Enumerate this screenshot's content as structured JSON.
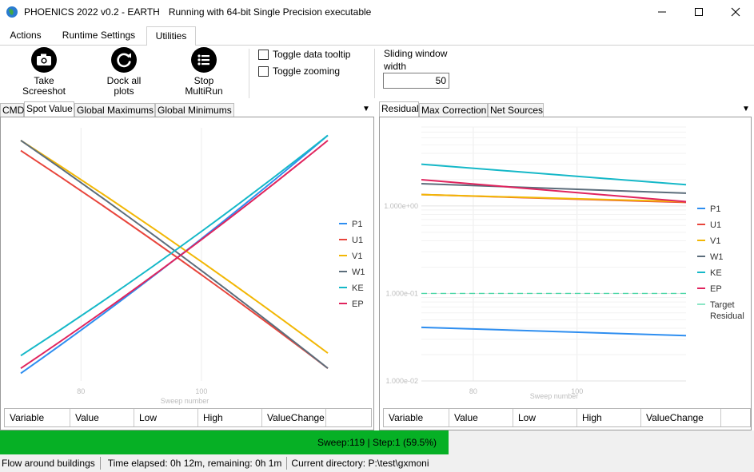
{
  "window": {
    "title": "PHOENICS 2022 v0.2 - EARTH",
    "subtitle": "Running with 64-bit Single Precision executable",
    "minimize_icon": "minimize-icon",
    "maximize_icon": "maximize-icon",
    "close_icon": "close-icon"
  },
  "menu_tabs": [
    {
      "label": "Actions",
      "active": false
    },
    {
      "label": "Runtime Settings",
      "active": false
    },
    {
      "label": "Utilities",
      "active": true
    }
  ],
  "ribbon": {
    "screenshot": {
      "line1": "Take",
      "line2": "Screeshot",
      "icon": "camera-icon"
    },
    "dock": {
      "line1": "Dock all",
      "line2": "plots",
      "icon": "refresh-icon"
    },
    "stop": {
      "line1": "Stop",
      "line2": "MultiRun",
      "icon": "list-icon"
    },
    "toggle_tooltip": "Toggle data tooltip",
    "toggle_zoom": "Toggle zooming",
    "sliding_window_label": "Sliding window width",
    "sliding_window_value": "50"
  },
  "left_panel": {
    "tabs": [
      "CMD",
      "Spot Value",
      "Global Maximums",
      "Global Minimums"
    ],
    "active_tab": 1,
    "table_headers": [
      "Variable",
      "Value",
      "Low",
      "High",
      "ValueChange"
    ]
  },
  "right_panel": {
    "tabs": [
      "Residual",
      "Max Correction",
      "Net Sources"
    ],
    "active_tab": 0,
    "table_headers": [
      "Variable",
      "Value",
      "Low",
      "High",
      "ValueChange"
    ]
  },
  "colors": {
    "P1": "#2e8ef0",
    "U1": "#e8453c",
    "V1": "#f2b705",
    "W1": "#5c6d7b",
    "KE": "#15b8c8",
    "EP": "#e0245e",
    "Target": "#4fd8a8",
    "progress": "#06b025"
  },
  "chart_data": [
    {
      "type": "line",
      "title": "",
      "xlabel": "Sweep number",
      "ylabel": "",
      "xticks": [
        "80",
        "100"
      ],
      "xlim": [
        70,
        121
      ],
      "ylim": [
        0,
        1
      ],
      "legend": "right",
      "series": [
        {
          "name": "P1",
          "x": [
            70,
            121
          ],
          "y": [
            0.03,
            0.97
          ]
        },
        {
          "name": "U1",
          "x": [
            70,
            121
          ],
          "y": [
            0.91,
            0.05
          ]
        },
        {
          "name": "V1",
          "x": [
            70,
            121
          ],
          "y": [
            0.95,
            0.11
          ]
        },
        {
          "name": "W1",
          "x": [
            70,
            121
          ],
          "y": [
            0.95,
            0.05
          ]
        },
        {
          "name": "KE",
          "x": [
            70,
            121
          ],
          "y": [
            0.1,
            0.97
          ]
        },
        {
          "name": "EP",
          "x": [
            70,
            121
          ],
          "y": [
            0.05,
            0.95
          ]
        }
      ]
    },
    {
      "type": "line",
      "title": "",
      "xlabel": "Sweep number",
      "ylabel": "",
      "yscale": "log",
      "yticks": [
        "1.000e+00",
        "1.000e-01",
        "1.000e-02"
      ],
      "xticks": [
        "80",
        "100"
      ],
      "xlim": [
        70,
        121
      ],
      "ylim": [
        0.01,
        8
      ],
      "legend": "right",
      "series": [
        {
          "name": "P1",
          "x": [
            70,
            121
          ],
          "y": [
            0.041,
            0.033
          ]
        },
        {
          "name": "U1",
          "x": [
            70,
            121
          ],
          "y": [
            1.35,
            1.1
          ]
        },
        {
          "name": "V1",
          "x": [
            70,
            121
          ],
          "y": [
            1.35,
            1.12
          ]
        },
        {
          "name": "W1",
          "x": [
            70,
            121
          ],
          "y": [
            1.8,
            1.4
          ]
        },
        {
          "name": "KE",
          "x": [
            70,
            121
          ],
          "y": [
            3.0,
            1.75
          ]
        },
        {
          "name": "EP",
          "x": [
            70,
            121
          ],
          "y": [
            2.0,
            1.12
          ]
        },
        {
          "name": "Target Residual",
          "x": [
            70,
            121
          ],
          "y": [
            0.1,
            0.1
          ]
        }
      ]
    }
  ],
  "status": {
    "progress_text": "Sweep:119 | Step:1  (59.5%)",
    "progress_value": 0.595
  },
  "footer": {
    "case": "Flow around buildings",
    "elapsed": "Time elapsed: 0h 12m, remaining: 0h 1m",
    "directory": "Current directory:  P:\\test\\gxmoni"
  }
}
